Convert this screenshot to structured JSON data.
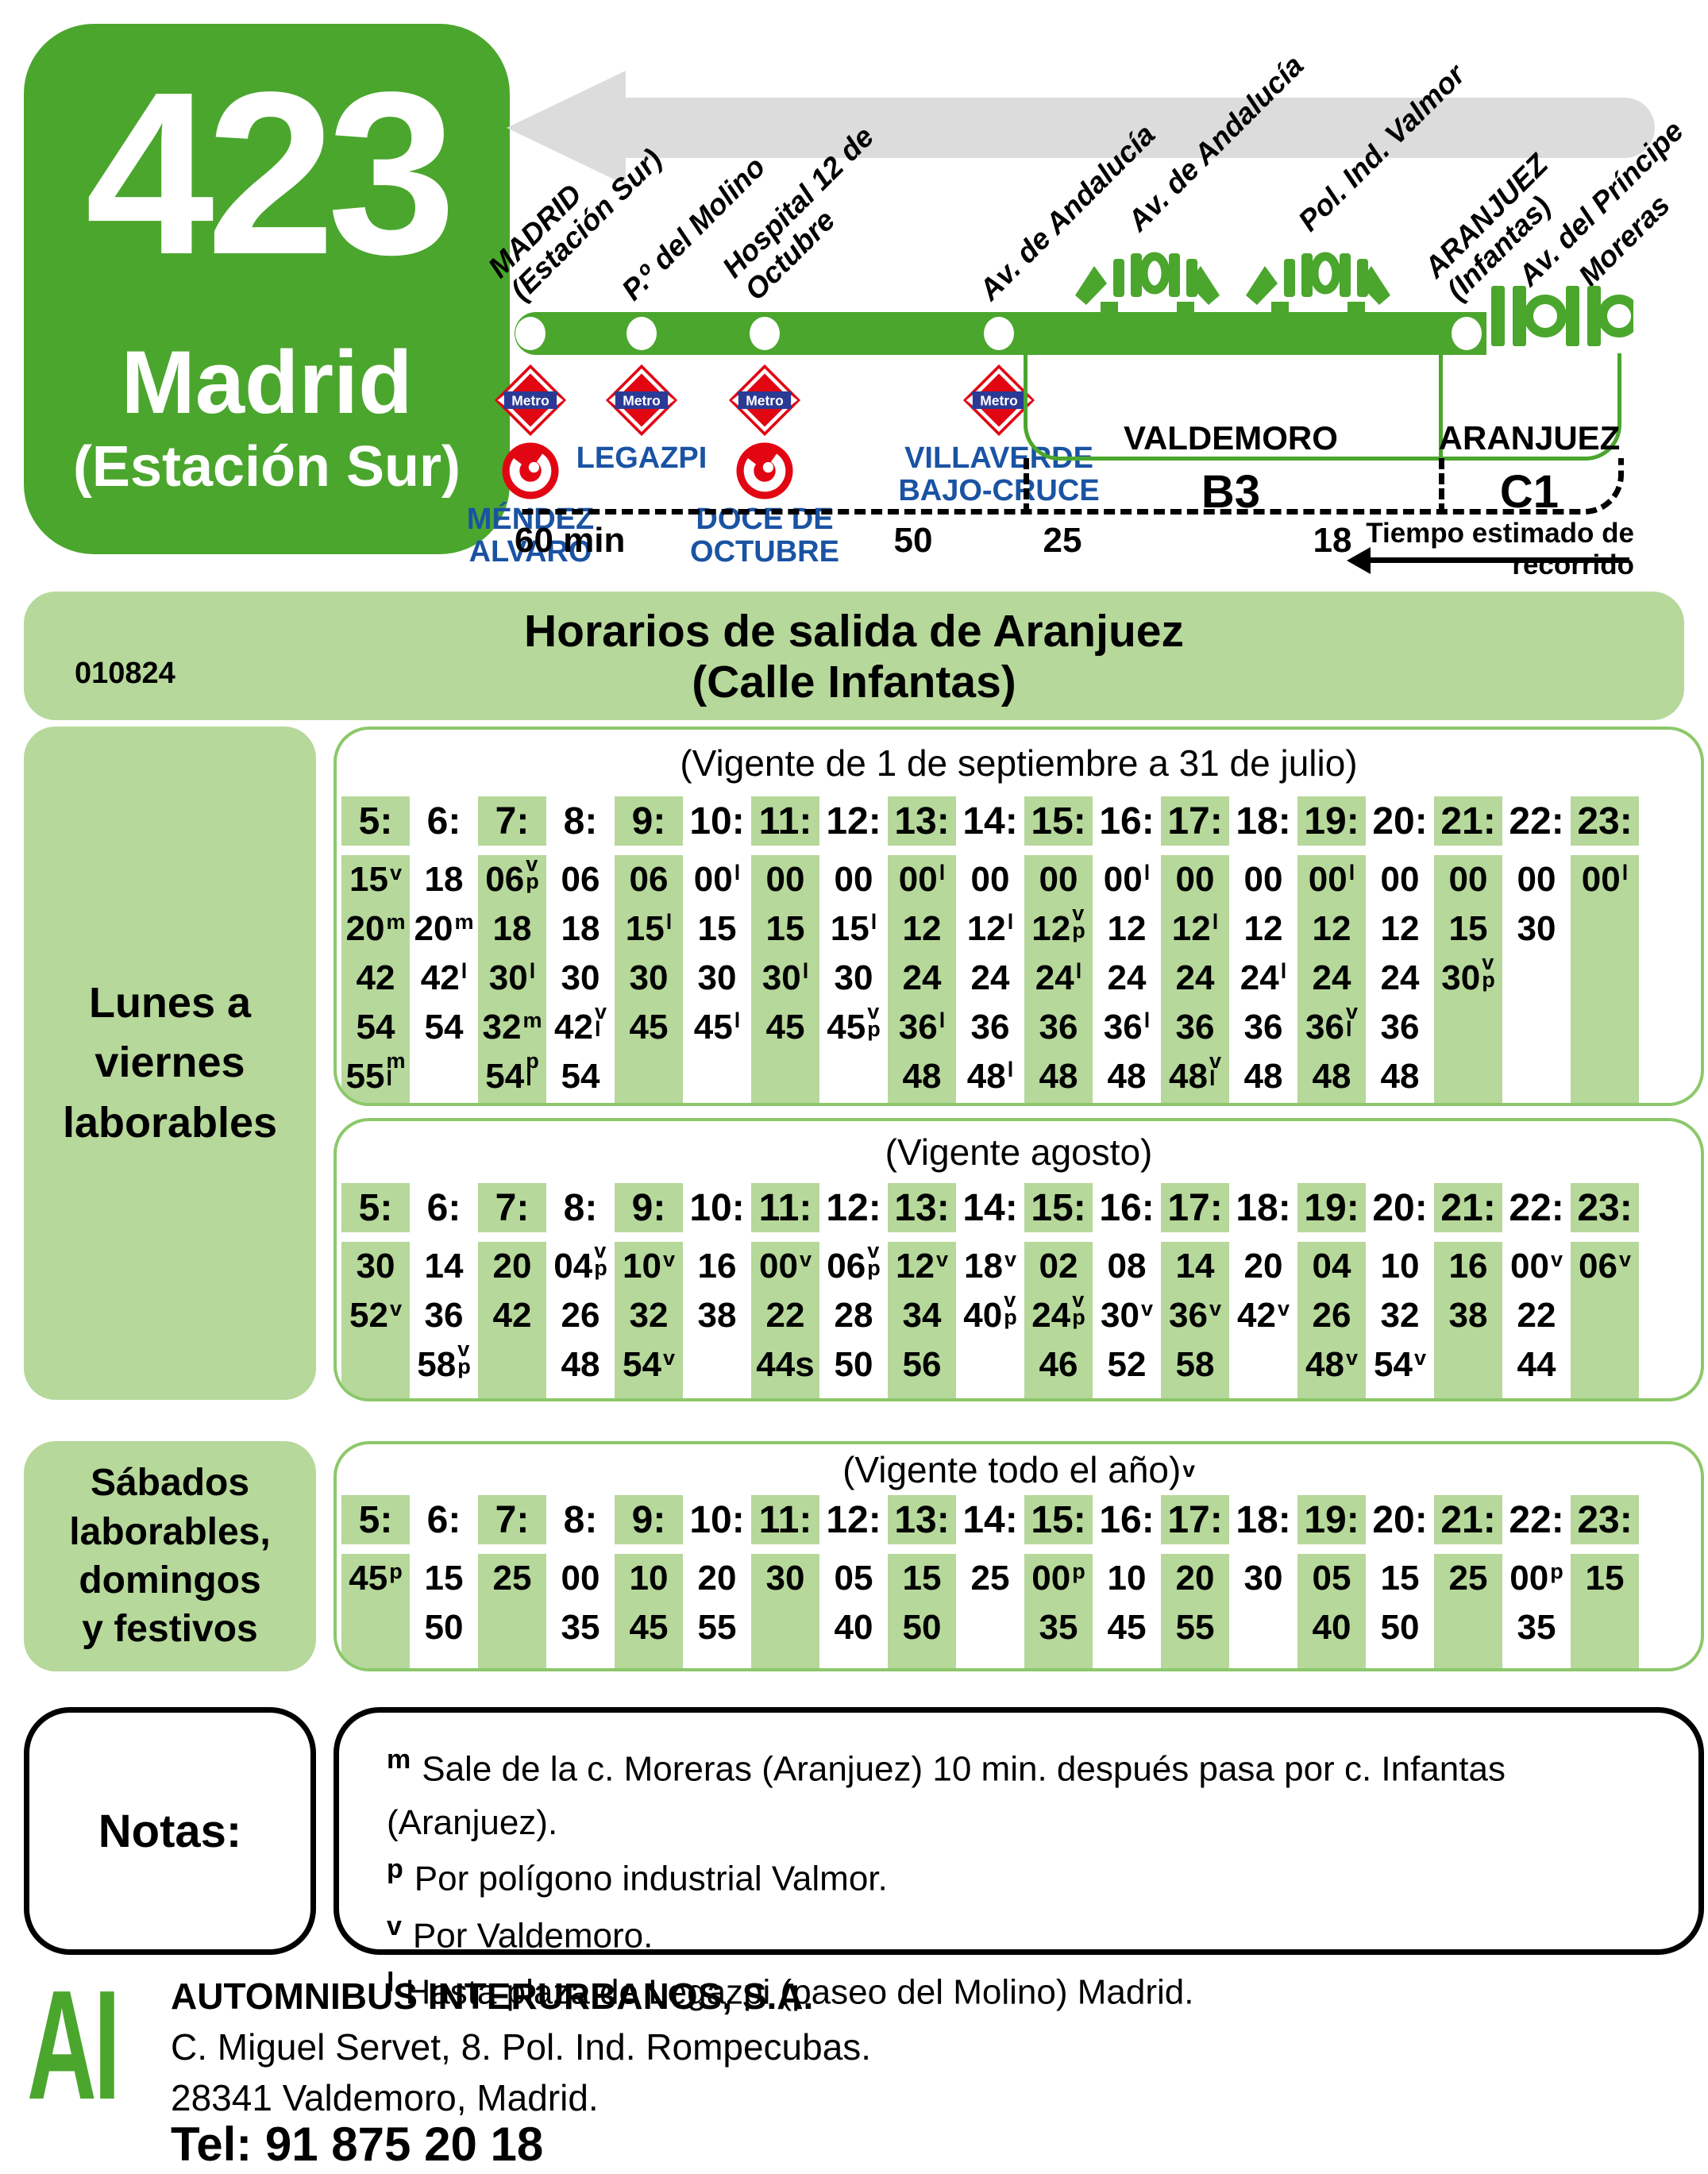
{
  "header": {
    "line_number": "423",
    "line_name": "Madrid",
    "line_name_sub": "(Estación Sur)"
  },
  "diagram": {
    "stops": [
      {
        "name": "MADRID\n(Estación Sur)",
        "type": "dot"
      },
      {
        "name": "P.º del Molino",
        "type": "dot"
      },
      {
        "name": "Hospital 12 de\nOctubre",
        "type": "dot"
      },
      {
        "name": "Av. de Andalucía",
        "type": "dot"
      },
      {
        "name": "Av. de Andalucía",
        "type": "junction"
      },
      {
        "name": "Pol. Ind. Valmor",
        "type": "junction"
      },
      {
        "name": "ARANJUEZ\n(Infantas)",
        "type": "dot"
      },
      {
        "name": "Av. del Príncipe",
        "type": "ring"
      },
      {
        "name": "Moreras",
        "type": "ring"
      }
    ],
    "metro_stations": [
      {
        "name": "MÉNDEZ\nALVARO",
        "metro": true,
        "cercanias": true
      },
      {
        "name": "LEGAZPI",
        "metro": true,
        "cercanias": false
      },
      {
        "name": "DOCE DE\nOCTUBRE",
        "metro": true,
        "cercanias": true
      },
      {
        "name": "VILLAVERDE\nBAJO-CRUCE",
        "metro": true,
        "cercanias": false
      }
    ],
    "zones": [
      {
        "town": "VALDEMORO",
        "fare": "B3"
      },
      {
        "town": "ARANJUEZ",
        "fare": "C1"
      }
    ],
    "travel_times": [
      "60 min",
      "50",
      "25",
      "18"
    ],
    "travel_time_caption": "Tiempo estimado de recorrido"
  },
  "banner": {
    "code": "010824",
    "title": "Horarios de salida de Aranjuez",
    "subtitle": "(Calle Infantas)"
  },
  "day_groups": [
    {
      "label_lines": [
        "Lunes a",
        "viernes",
        "laborables"
      ]
    },
    {
      "label_lines": [
        "Sábados",
        "laborables,",
        "domingos",
        "y festivos"
      ]
    }
  ],
  "tables": [
    {
      "caption": "(Vigente de 1 de septiembre a 31 de julio)",
      "caption_sup": "",
      "hours": [
        "5:",
        "6:",
        "7:",
        "8:",
        "9:",
        "10:",
        "11:",
        "12:",
        "13:",
        "14:",
        "15:",
        "16:",
        "17:",
        "18:",
        "19:",
        "20:",
        "21:",
        "22:",
        "23:"
      ],
      "rows": 5,
      "columns": [
        [
          "15^v",
          "20^m",
          "42",
          "54",
          "55^m_l"
        ],
        [
          "18",
          "20^m",
          "42^l",
          "54"
        ],
        [
          "06^v_p",
          "18",
          "30^l",
          "32^m",
          "54^p_l"
        ],
        [
          "06",
          "18",
          "30",
          "42^v_l",
          "54"
        ],
        [
          "06",
          "15^l",
          "30",
          "45"
        ],
        [
          "00^l",
          "15",
          "30",
          "45^l"
        ],
        [
          "00",
          "15",
          "30^l",
          "45"
        ],
        [
          "00",
          "15^l",
          "30",
          "45^v_p"
        ],
        [
          "00^l",
          "12",
          "24",
          "36^l",
          "48"
        ],
        [
          "00",
          "12^l",
          "24",
          "36",
          "48^l"
        ],
        [
          "00",
          "12^v_p",
          "24^l",
          "36",
          "48"
        ],
        [
          "00^l",
          "12",
          "24",
          "36^l",
          "48"
        ],
        [
          "00",
          "12^l",
          "24",
          "36",
          "48^v_l"
        ],
        [
          "00",
          "12",
          "24^l",
          "36",
          "48"
        ],
        [
          "00^l",
          "12",
          "24",
          "36^v_l",
          "48"
        ],
        [
          "00",
          "12",
          "24",
          "36",
          "48"
        ],
        [
          "00",
          "15",
          "30^v_p"
        ],
        [
          "00",
          "30"
        ],
        [
          "00^l"
        ]
      ]
    },
    {
      "caption": "(Vigente agosto)",
      "caption_sup": "",
      "hours": [
        "5:",
        "6:",
        "7:",
        "8:",
        "9:",
        "10:",
        "11:",
        "12:",
        "13:",
        "14:",
        "15:",
        "16:",
        "17:",
        "18:",
        "19:",
        "20:",
        "21:",
        "22:",
        "23:"
      ],
      "rows": 3,
      "columns": [
        [
          "30",
          "52^v"
        ],
        [
          "14",
          "36",
          "58^v_p"
        ],
        [
          "20",
          "42"
        ],
        [
          "04^v_p",
          "26",
          "48"
        ],
        [
          "10^v",
          "32",
          "54^v"
        ],
        [
          "16",
          "38"
        ],
        [
          "00^v",
          "22",
          "44s"
        ],
        [
          "06^v_p",
          "28",
          "50"
        ],
        [
          "12^v",
          "34",
          "56"
        ],
        [
          "18^v",
          "40^v_p"
        ],
        [
          "02",
          "24^v_p",
          "46"
        ],
        [
          "08",
          "30^v",
          "52"
        ],
        [
          "14",
          "36^v",
          "58"
        ],
        [
          "20",
          "42^v"
        ],
        [
          "04",
          "26",
          "48^v"
        ],
        [
          "10",
          "32",
          "54^v"
        ],
        [
          "16",
          "38"
        ],
        [
          "00^v",
          "22",
          "44"
        ],
        [
          "06^v"
        ]
      ]
    },
    {
      "caption": "(Vigente todo el año)",
      "caption_sup": "v",
      "hours": [
        "5:",
        "6:",
        "7:",
        "8:",
        "9:",
        "10:",
        "11:",
        "12:",
        "13:",
        "14:",
        "15:",
        "16:",
        "17:",
        "18:",
        "19:",
        "20:",
        "21:",
        "22:",
        "23:"
      ],
      "rows": 2,
      "columns": [
        [
          "45^p"
        ],
        [
          "15",
          "50"
        ],
        [
          "25"
        ],
        [
          "00",
          "35"
        ],
        [
          "10",
          "45"
        ],
        [
          "20",
          "55"
        ],
        [
          "30"
        ],
        [
          "05",
          "40"
        ],
        [
          "15",
          "50"
        ],
        [
          "25"
        ],
        [
          "00^p",
          "35"
        ],
        [
          "10",
          "45"
        ],
        [
          "20",
          "55"
        ],
        [
          "30"
        ],
        [
          "05",
          "40"
        ],
        [
          "15",
          "50"
        ],
        [
          "25"
        ],
        [
          "00^p",
          "35"
        ],
        [
          "15"
        ]
      ]
    }
  ],
  "notes": {
    "label": "Notas:",
    "items": [
      {
        "key": "m",
        "text": "Sale de la c. Moreras (Aranjuez) 10 min. después pasa por c. Infantas (Aranjuez)."
      },
      {
        "key": "p",
        "text": "Por polígono industrial Valmor."
      },
      {
        "key": "v",
        "text": "Por Valdemoro."
      },
      {
        "key": "l",
        "text": "Hasta plaza de Legazpi (paseo del Molino) Madrid."
      }
    ]
  },
  "footer": {
    "logo": "AI",
    "company": "AUTOMNIBUS INTERURBANOS, S.A.",
    "address": "C. Miguel Servet, 8.  Pol. Ind. Rompecubas.",
    "city": "28341 Valdemoro, Madrid.",
    "phone": "Tel: 91 875 20 18"
  },
  "colors": {
    "line_green": "#4ba62d",
    "light_green": "#b6d89a",
    "table_border_green": "#8cc86a",
    "metro_red": "#e20613",
    "metro_blue": "#2b3a94",
    "station_blue": "#1a53a3",
    "arrow_grey": "#dcdcdc"
  }
}
